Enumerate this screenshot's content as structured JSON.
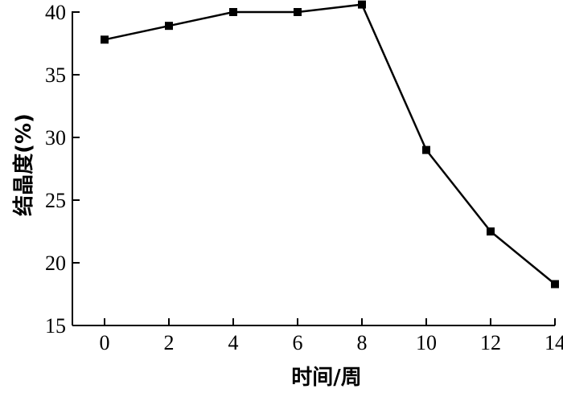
{
  "chart_data": {
    "type": "line",
    "xlabel": "时间/周",
    "ylabel": "结晶度(%)",
    "xlim": [
      -1,
      14
    ],
    "ylim": [
      15,
      40
    ],
    "x_ticks": [
      0,
      2,
      4,
      6,
      8,
      10,
      12,
      14
    ],
    "y_ticks": [
      15,
      20,
      25,
      30,
      35,
      40
    ],
    "x_tick_labels": [
      "0",
      "2",
      "4",
      "6",
      "8",
      "10",
      "12",
      "14"
    ],
    "y_tick_labels": [
      "15",
      "20",
      "25",
      "30",
      "35",
      "40"
    ],
    "grid": false,
    "legend": "none",
    "series": [
      {
        "x": [
          0,
          2,
          4,
          6,
          8,
          10,
          12,
          14
        ],
        "values": [
          37.8,
          38.9,
          40.0,
          40.0,
          40.6,
          29.0,
          22.5,
          18.3
        ],
        "marker": "square",
        "color": "#000000"
      }
    ]
  }
}
